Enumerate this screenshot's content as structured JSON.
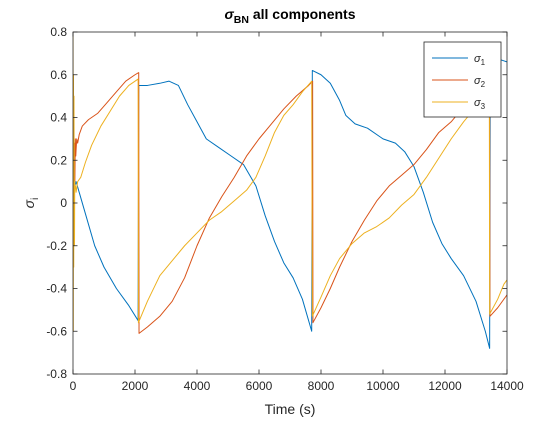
{
  "chart_data": {
    "type": "line",
    "title": {
      "symbol": "σ",
      "subscript": "BN",
      "rest": " all components"
    },
    "xlabel": "Time (s)",
    "ylabel": {
      "symbol": "σ",
      "subscript": "i"
    },
    "xlim": [
      0,
      14000
    ],
    "ylim": [
      -0.8,
      0.8
    ],
    "xticks": [
      0,
      2000,
      4000,
      6000,
      8000,
      10000,
      12000,
      14000
    ],
    "yticks": [
      -0.8,
      -0.6,
      -0.4,
      -0.2,
      0,
      0.2,
      0.4,
      0.6,
      0.8
    ],
    "xtick_labels": [
      "0",
      "2000",
      "4000",
      "6000",
      "8000",
      "10000",
      "12000",
      "14000"
    ],
    "ytick_labels": [
      "-0.8",
      "-0.6",
      "-0.4",
      "-0.2",
      "0",
      "0.2",
      "0.4",
      "0.6",
      "0.8"
    ],
    "grid": false,
    "legend_position": "top-right",
    "series": [
      {
        "name": "σ",
        "name_subscript": "1",
        "color": "#0072BD",
        "points": [
          [
            0,
            0.04
          ],
          [
            30,
            0.12
          ],
          [
            60,
            0.08
          ],
          [
            100,
            0.1
          ],
          [
            200,
            0.05
          ],
          [
            400,
            -0.05
          ],
          [
            700,
            -0.2
          ],
          [
            1000,
            -0.3
          ],
          [
            1400,
            -0.4
          ],
          [
            1800,
            -0.48
          ],
          [
            2100,
            -0.55
          ],
          [
            2120,
            0.55
          ],
          [
            2400,
            0.55
          ],
          [
            2800,
            0.56
          ],
          [
            3100,
            0.57
          ],
          [
            3400,
            0.55
          ],
          [
            3700,
            0.46
          ],
          [
            4000,
            0.38
          ],
          [
            4300,
            0.3
          ],
          [
            4700,
            0.26
          ],
          [
            5100,
            0.22
          ],
          [
            5500,
            0.18
          ],
          [
            5900,
            0.08
          ],
          [
            6200,
            -0.06
          ],
          [
            6500,
            -0.18
          ],
          [
            6800,
            -0.28
          ],
          [
            7100,
            -0.35
          ],
          [
            7400,
            -0.45
          ],
          [
            7700,
            -0.6
          ],
          [
            7720,
            0.62
          ],
          [
            8000,
            0.6
          ],
          [
            8300,
            0.56
          ],
          [
            8600,
            0.48
          ],
          [
            8800,
            0.41
          ],
          [
            9100,
            0.37
          ],
          [
            9500,
            0.35
          ],
          [
            10000,
            0.3
          ],
          [
            10400,
            0.28
          ],
          [
            10700,
            0.24
          ],
          [
            11000,
            0.17
          ],
          [
            11300,
            0.05
          ],
          [
            11600,
            -0.09
          ],
          [
            11900,
            -0.19
          ],
          [
            12200,
            -0.26
          ],
          [
            12600,
            -0.34
          ],
          [
            13000,
            -0.46
          ],
          [
            13300,
            -0.6
          ],
          [
            13440,
            -0.68
          ],
          [
            13460,
            0.67
          ],
          [
            13800,
            0.67
          ],
          [
            14000,
            0.66
          ]
        ]
      },
      {
        "name": "σ",
        "name_subscript": "2",
        "color": "#D95319",
        "points": [
          [
            0,
            0.0
          ],
          [
            15,
            0.2
          ],
          [
            30,
            -0.05
          ],
          [
            45,
            0.28
          ],
          [
            60,
            0.1
          ],
          [
            75,
            0.3
          ],
          [
            90,
            0.22
          ],
          [
            100,
            0.25
          ],
          [
            120,
            0.3
          ],
          [
            150,
            0.28
          ],
          [
            200,
            0.32
          ],
          [
            300,
            0.36
          ],
          [
            500,
            0.39
          ],
          [
            800,
            0.42
          ],
          [
            1100,
            0.47
          ],
          [
            1400,
            0.52
          ],
          [
            1700,
            0.57
          ],
          [
            2000,
            0.6
          ],
          [
            2120,
            0.61
          ],
          [
            2130,
            -0.61
          ],
          [
            2400,
            -0.58
          ],
          [
            2800,
            -0.53
          ],
          [
            3200,
            -0.46
          ],
          [
            3600,
            -0.35
          ],
          [
            4000,
            -0.2
          ],
          [
            4400,
            -0.07
          ],
          [
            4800,
            0.03
          ],
          [
            5200,
            0.12
          ],
          [
            5600,
            0.22
          ],
          [
            6000,
            0.3
          ],
          [
            6400,
            0.37
          ],
          [
            6800,
            0.44
          ],
          [
            7200,
            0.5
          ],
          [
            7600,
            0.55
          ],
          [
            7730,
            0.57
          ],
          [
            7740,
            -0.56
          ],
          [
            8000,
            -0.49
          ],
          [
            8300,
            -0.4
          ],
          [
            8600,
            -0.3
          ],
          [
            9000,
            -0.18
          ],
          [
            9400,
            -0.08
          ],
          [
            9800,
            0.01
          ],
          [
            10200,
            0.08
          ],
          [
            10600,
            0.13
          ],
          [
            11000,
            0.18
          ],
          [
            11400,
            0.25
          ],
          [
            11800,
            0.33
          ],
          [
            12200,
            0.38
          ],
          [
            12600,
            0.45
          ],
          [
            13000,
            0.5
          ],
          [
            13440,
            0.52
          ],
          [
            13450,
            -0.53
          ],
          [
            13700,
            -0.49
          ],
          [
            14000,
            -0.43
          ]
        ]
      },
      {
        "name": "σ",
        "name_subscript": "3",
        "color": "#EDB120",
        "points": [
          [
            0,
            0.8
          ],
          [
            8,
            -0.6
          ],
          [
            16,
            0.6
          ],
          [
            24,
            -0.3
          ],
          [
            32,
            0.5
          ],
          [
            40,
            0.0
          ],
          [
            48,
            -0.2
          ],
          [
            56,
            0.1
          ],
          [
            64,
            0.07
          ],
          [
            80,
            0.08
          ],
          [
            100,
            0.05
          ],
          [
            150,
            0.1
          ],
          [
            250,
            0.12
          ],
          [
            400,
            0.19
          ],
          [
            600,
            0.27
          ],
          [
            900,
            0.36
          ],
          [
            1200,
            0.43
          ],
          [
            1500,
            0.5
          ],
          [
            1800,
            0.55
          ],
          [
            2100,
            0.58
          ],
          [
            2110,
            -0.56
          ],
          [
            2400,
            -0.46
          ],
          [
            2800,
            -0.34
          ],
          [
            3200,
            -0.27
          ],
          [
            3600,
            -0.2
          ],
          [
            4000,
            -0.14
          ],
          [
            4400,
            -0.08
          ],
          [
            4800,
            -0.04
          ],
          [
            5200,
            0.01
          ],
          [
            5600,
            0.06
          ],
          [
            5900,
            0.12
          ],
          [
            6200,
            0.22
          ],
          [
            6500,
            0.33
          ],
          [
            6800,
            0.41
          ],
          [
            7100,
            0.46
          ],
          [
            7400,
            0.52
          ],
          [
            7700,
            0.57
          ],
          [
            7720,
            -0.53
          ],
          [
            8000,
            -0.44
          ],
          [
            8300,
            -0.34
          ],
          [
            8600,
            -0.26
          ],
          [
            9000,
            -0.19
          ],
          [
            9400,
            -0.14
          ],
          [
            9800,
            -0.11
          ],
          [
            10200,
            -0.07
          ],
          [
            10600,
            -0.01
          ],
          [
            11000,
            0.04
          ],
          [
            11400,
            0.12
          ],
          [
            11800,
            0.21
          ],
          [
            12200,
            0.3
          ],
          [
            12600,
            0.38
          ],
          [
            13000,
            0.45
          ],
          [
            13430,
            0.54
          ],
          [
            13440,
            -0.52
          ],
          [
            13700,
            -0.45
          ],
          [
            13900,
            -0.38
          ],
          [
            14000,
            -0.36
          ]
        ]
      }
    ]
  }
}
